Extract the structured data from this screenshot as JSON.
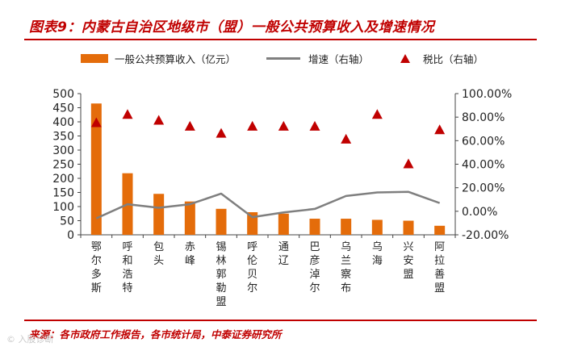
{
  "title": "图表9：内蒙古自治区地级市（盟）一般公共预算收入及增速情况",
  "source": "来源：各市政府工作报告，各市统计局，中泰证券研究所",
  "watermark": "© 入股诊断",
  "colors": {
    "accent": "#C00000",
    "bar": "#E46C0A",
    "line": "#7F7F7F",
    "marker": "#C00000"
  },
  "chart_data": {
    "type": "bar",
    "categories": [
      "鄂尔多斯",
      "呼和浩特",
      "包头",
      "赤峰",
      "锡林郭勒盟",
      "呼伦贝尔",
      "通辽",
      "巴彦淖尔",
      "乌兰察布",
      "乌海",
      "兴安盟",
      "阿拉善盟"
    ],
    "series": [
      {
        "name": "一般公共预算收入（亿元）",
        "type": "bar",
        "axis": "left",
        "values": [
          465,
          218,
          145,
          118,
          92,
          80,
          75,
          57,
          57,
          53,
          50,
          32
        ]
      },
      {
        "name": "增速（右轴）",
        "type": "line",
        "axis": "right",
        "values": [
          -6,
          6,
          3,
          6,
          15,
          -5,
          -1,
          2,
          13,
          16,
          16.5,
          7
        ]
      },
      {
        "name": "税比（右轴）",
        "type": "scatter",
        "marker": "triangle",
        "axis": "right",
        "values": [
          75,
          82,
          77,
          72,
          66,
          72,
          72,
          72,
          61,
          82,
          40,
          69
        ]
      }
    ],
    "left_axis": {
      "min": 0,
      "max": 500,
      "step": 50,
      "tick_labels": [
        "0",
        "50",
        "100",
        "150",
        "200",
        "250",
        "300",
        "350",
        "400",
        "450",
        "500"
      ]
    },
    "right_axis": {
      "min": -20,
      "max": 100,
      "step": 20,
      "tick_labels": [
        "-20.00%",
        "0.00%",
        "20.00%",
        "40.00%",
        "60.00%",
        "80.00%",
        "100.00%"
      ]
    },
    "legend": [
      "一般公共预算收入（亿元）",
      "增速（右轴）",
      "税比（右轴）"
    ],
    "legend_position": "top"
  }
}
